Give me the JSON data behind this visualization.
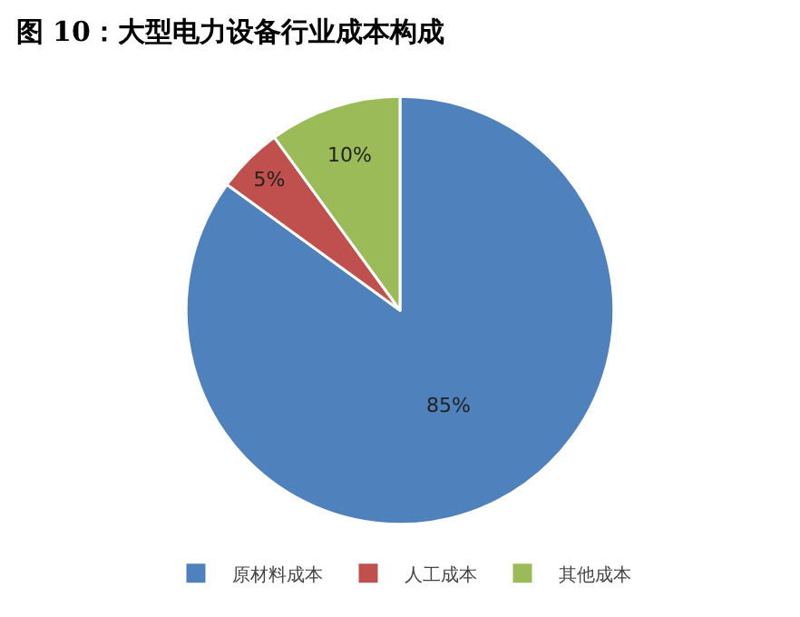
{
  "chart_data": {
    "type": "pie",
    "title": "图 10：大型电力设备行业成本构成",
    "categories": [
      "原材料成本",
      "人工成本",
      "其他成本"
    ],
    "values": [
      85,
      5,
      10
    ],
    "value_labels": [
      "85%",
      "5%",
      "10%"
    ],
    "colors": [
      "#4f81bd",
      "#c0504d",
      "#9bbb59"
    ],
    "legend": "bottom"
  }
}
